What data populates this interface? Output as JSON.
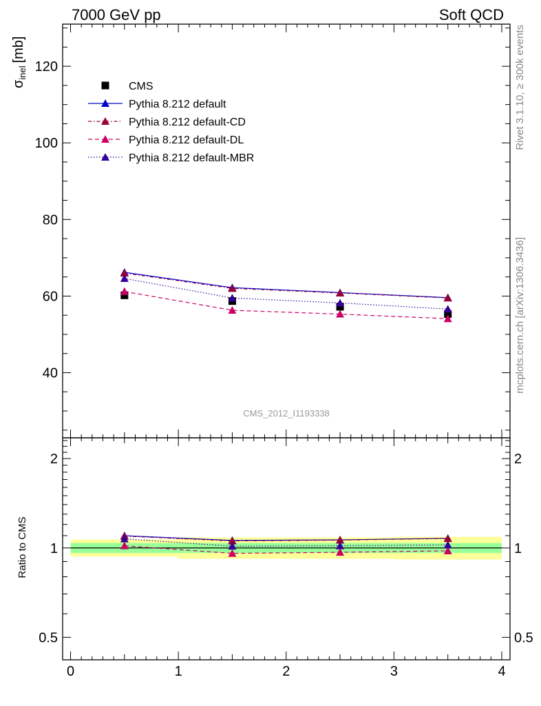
{
  "header": {
    "left": "7000 GeV pp",
    "right": "Soft QCD"
  },
  "side_labels": {
    "rivet": "Rivet 3.1.10, ≥ 300k events",
    "site": "mcplots.cern.ch [arXiv:1306.3436]"
  },
  "watermark": "CMS_2012_I1193338",
  "colors": {
    "cms": "#000000",
    "default": "#0000cc",
    "default_cd": "#990033",
    "default_dl": "#cc0066",
    "default_mbr": "#330099",
    "band_inner": "#99ff99",
    "band_outer": "#ffff99"
  },
  "chart_data": [
    {
      "type": "line",
      "panel": "main",
      "ylabel_symbol": "σ",
      "ylabel_sub": "inel",
      "ylabel_unit": "[mb]",
      "xlim": [
        0,
        4
      ],
      "ylim": [
        23,
        131
      ],
      "yticks": [
        40,
        60,
        80,
        100,
        120
      ],
      "legend_position": "top-left",
      "x": [
        0.5,
        1.5,
        2.5,
        3.5
      ],
      "series": [
        {
          "name": "CMS",
          "style": "square-marker",
          "values": [
            60.2,
            58.7,
            57.2,
            55.3
          ]
        },
        {
          "name": "Pythia 8.212 default",
          "style": "solid",
          "values": [
            66.2,
            62.2,
            60.9,
            59.6
          ]
        },
        {
          "name": "Pythia 8.212 default-CD",
          "style": "dashdot",
          "values": [
            66.0,
            62.0,
            60.8,
            59.5
          ]
        },
        {
          "name": "Pythia 8.212 default-DL",
          "style": "dashed",
          "values": [
            61.2,
            56.3,
            55.3,
            54.1
          ]
        },
        {
          "name": "Pythia 8.212 default-MBR",
          "style": "dotted",
          "values": [
            64.6,
            59.5,
            58.2,
            56.6
          ]
        }
      ]
    },
    {
      "type": "line",
      "panel": "ratio",
      "ylabel": "Ratio to CMS",
      "xlim": [
        0,
        4
      ],
      "ylim": [
        0.42,
        2.35
      ],
      "yticks": [
        0.5,
        1,
        2
      ],
      "ytick_labels": [
        "0.5",
        "1",
        "2"
      ],
      "xticks": [
        0,
        1,
        2,
        3,
        4
      ],
      "x": [
        0.5,
        1.5,
        2.5,
        3.5
      ],
      "bands": [
        {
          "xlo": 0,
          "xhi": 1,
          "inner": [
            0.962,
            1.039
          ],
          "outer": [
            0.935,
            1.068
          ]
        },
        {
          "xlo": 1,
          "xhi": 2,
          "inner": [
            0.962,
            1.039
          ],
          "outer": [
            0.92,
            1.085
          ]
        },
        {
          "xlo": 2,
          "xhi": 3,
          "inner": [
            0.962,
            1.039
          ],
          "outer": [
            0.92,
            1.085
          ]
        },
        {
          "xlo": 3,
          "xhi": 4,
          "inner": [
            0.962,
            1.039
          ],
          "outer": [
            0.915,
            1.09
          ]
        }
      ],
      "series": [
        {
          "name": "Pythia 8.212 default",
          "style": "solid",
          "values": [
            1.1,
            1.06,
            1.065,
            1.078
          ]
        },
        {
          "name": "Pythia 8.212 default-CD",
          "style": "dashdot",
          "values": [
            1.096,
            1.056,
            1.063,
            1.076
          ]
        },
        {
          "name": "Pythia 8.212 default-DL",
          "style": "dashed",
          "values": [
            1.017,
            0.959,
            0.967,
            0.978
          ]
        },
        {
          "name": "Pythia 8.212 default-MBR",
          "style": "dotted",
          "values": [
            1.073,
            1.014,
            1.017,
            1.024
          ]
        }
      ]
    }
  ]
}
